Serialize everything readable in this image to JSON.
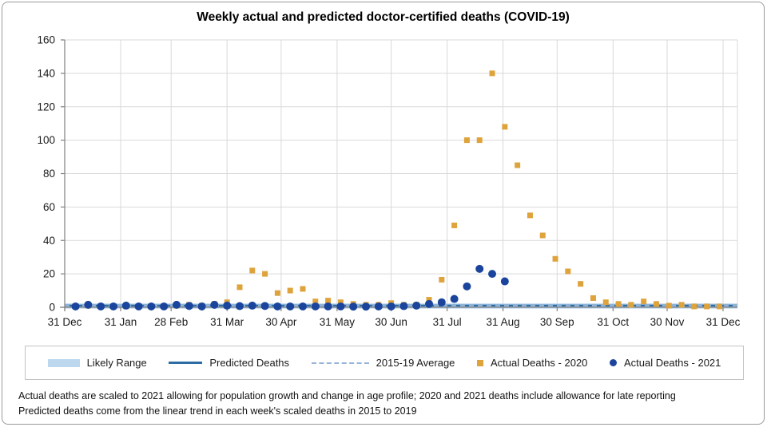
{
  "title": "Weekly actual and predicted doctor-certified deaths (COVID-19)",
  "footnotes": [
    "Actual deaths are scaled to 2021 allowing for population growth and change in age profile; 2020 and 2021 deaths include allowance for late reporting",
    "Predicted deaths come from the linear trend in each week's scaled deaths in 2015 to 2019"
  ],
  "legend": [
    {
      "label": "Likely Range",
      "marker": "band",
      "color": "#BDD7EE"
    },
    {
      "label": "Predicted Deaths",
      "marker": "line",
      "color": "#2E6DA4"
    },
    {
      "label": "2015-19 Average",
      "marker": "dashed",
      "color": "#95B4D7"
    },
    {
      "label": "Actual Deaths - 2020",
      "marker": "square",
      "color": "#DFA33C"
    },
    {
      "label": "Actual Deaths - 2021",
      "marker": "circle",
      "color": "#1B459C"
    }
  ],
  "colors": {
    "grid": "#d9d9d9",
    "axis": "#808080",
    "text": "#1a1a1a"
  },
  "chart_data": {
    "type": "scatter",
    "title": "Weekly actual and predicted doctor-certified deaths (COVID-19)",
    "xlabel": "",
    "ylabel": "",
    "ylim": [
      0,
      160
    ],
    "grid": true,
    "legend_position": "bottom",
    "y_ticks": [
      0,
      20,
      40,
      60,
      80,
      100,
      120,
      140,
      160
    ],
    "x_tick_labels": [
      "31 Dec",
      "31 Jan",
      "28 Feb",
      "31 Mar",
      "30 Apr",
      "31 May",
      "30 Jun",
      "31 Jul",
      "31 Aug",
      "30 Sep",
      "31 Oct",
      "30 Nov",
      "31 Dec"
    ],
    "x_tick_days": [
      0,
      31,
      59,
      90,
      120,
      151,
      181,
      212,
      243,
      273,
      304,
      334,
      365
    ],
    "x_span_days": 365,
    "series": [
      {
        "name": "Likely Range",
        "type": "band",
        "color": "#BDD7EE",
        "value_range": [
          -0.8,
          2.3
        ]
      },
      {
        "name": "Predicted Deaths",
        "type": "line",
        "color": "#2E6DA4",
        "value": 1
      },
      {
        "name": "2015-19 Average",
        "type": "dashed-line",
        "color": "#95B4D7",
        "value": 1
      },
      {
        "name": "Actual Deaths - 2020",
        "type": "scatter-square",
        "color": "#DFA33C",
        "start_day": 6,
        "interval_days": 7,
        "values": [
          0.5,
          1,
          0.5,
          0.5,
          0.5,
          0.5,
          0.5,
          0.5,
          1,
          1.5,
          1,
          2,
          3,
          12,
          22,
          20,
          8.5,
          10,
          11,
          3.5,
          4,
          3,
          2,
          1.5,
          1.5,
          2.5,
          1.5,
          1.5,
          4.5,
          16.5,
          49,
          100,
          100,
          140,
          108,
          85,
          55,
          43,
          29,
          21.5,
          14,
          5.5,
          3,
          2,
          1.5,
          3.5,
          2,
          1,
          1.5,
          0.5,
          0.5,
          0.5
        ]
      },
      {
        "name": "Actual Deaths - 2021",
        "type": "scatter-circle",
        "color": "#1B459C",
        "start_day": 6,
        "interval_days": 7,
        "values": [
          0.5,
          1.5,
          0.5,
          0.5,
          1,
          0.5,
          0.5,
          0.5,
          1.5,
          0.8,
          0.5,
          1.5,
          1,
          0.7,
          1,
          0.8,
          0.5,
          0.5,
          0.5,
          0.5,
          0.5,
          0.5,
          0.4,
          0.4,
          0.5,
          0.5,
          0.7,
          1,
          2,
          3,
          5,
          12.5,
          23,
          20,
          15.5
        ]
      }
    ]
  }
}
